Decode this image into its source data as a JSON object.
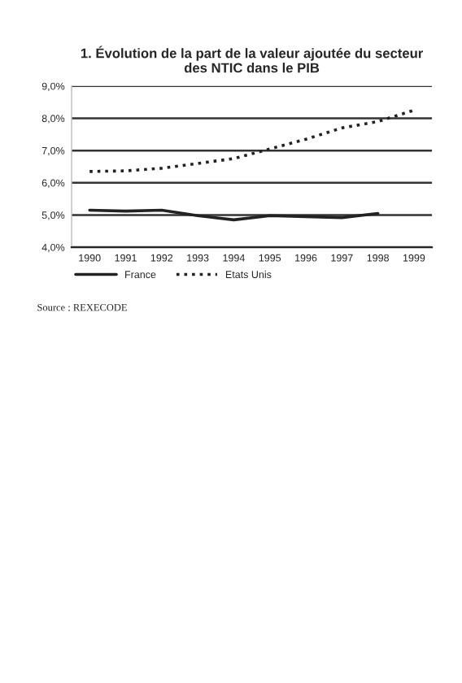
{
  "chart_data": {
    "type": "line",
    "title": "1. Évolution de la part de la valeur ajoutée du secteur\ndes NTIC dans le PIB",
    "categories": [
      "1990",
      "1991",
      "1992",
      "1993",
      "1994",
      "1995",
      "1996",
      "1997",
      "1998",
      "1999"
    ],
    "series": [
      {
        "name": "France",
        "color": "#222222",
        "line_style": "solid",
        "values": [
          5.15,
          5.12,
          5.15,
          4.98,
          4.85,
          4.98,
          4.95,
          4.92,
          5.05,
          null
        ]
      },
      {
        "name": "Etats Unis",
        "color": "#222222",
        "line_style": "dotted",
        "values": [
          6.35,
          6.37,
          6.45,
          6.6,
          6.75,
          7.05,
          7.35,
          7.7,
          7.9,
          8.25
        ]
      }
    ],
    "ylim": [
      4,
      9
    ],
    "yticks": [
      {
        "value": 4,
        "label": "4,0%"
      },
      {
        "value": 5,
        "label": "5,0%"
      },
      {
        "value": 6,
        "label": "6,0%"
      },
      {
        "value": 7,
        "label": "7,0%"
      },
      {
        "value": 8,
        "label": "8,0%"
      },
      {
        "value": 9,
        "label": "9,0%"
      }
    ],
    "grid": "y",
    "legend": "bottom",
    "annotations": [
      "Source : REXECODE"
    ]
  }
}
